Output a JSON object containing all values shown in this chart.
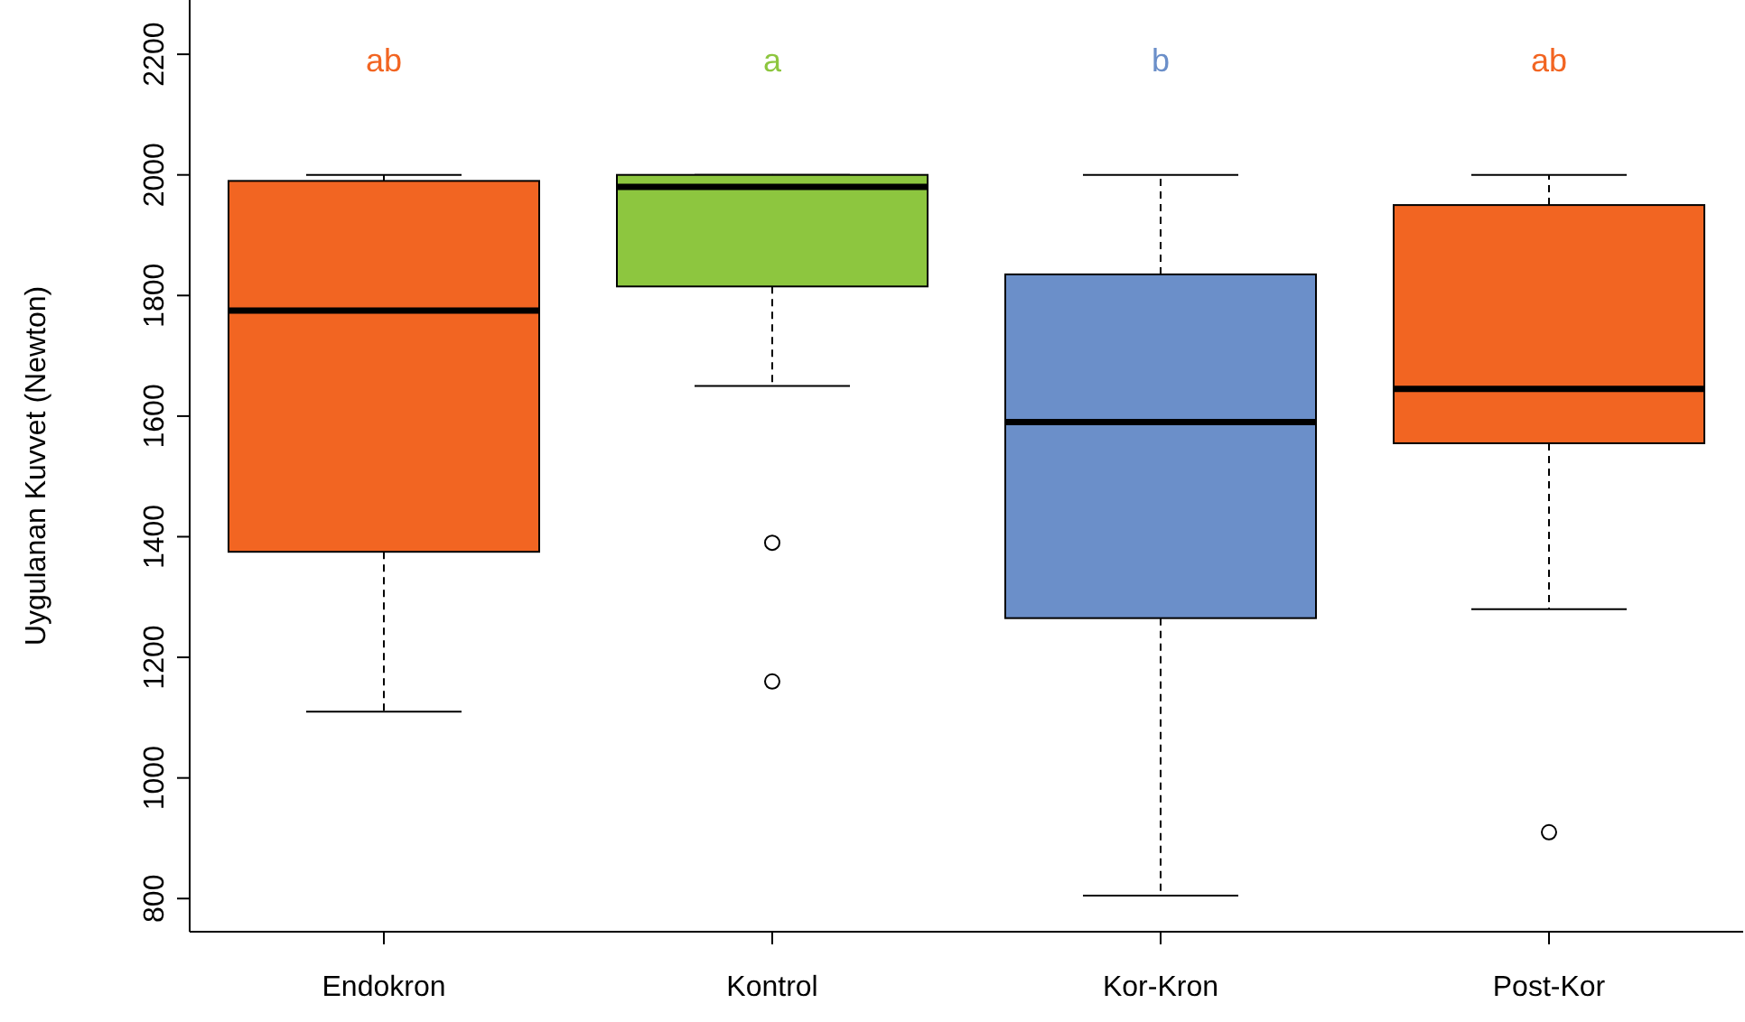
{
  "chart_data": {
    "type": "box",
    "ylabel": "Uygulanan Kuvvet (Newton)",
    "categories": [
      "Endokron",
      "Kontrol",
      "Kor-Kron",
      "Post-Kor"
    ],
    "colors": [
      "#f26522",
      "#8dc63f",
      "#6b8fc9",
      "#f26522"
    ],
    "boxes": [
      {
        "low": 1110,
        "q1": 1375,
        "median": 1775,
        "q3": 1990,
        "high": 2000
      },
      {
        "low": 1650,
        "q1": 1815,
        "median": 1980,
        "q3": 2000,
        "high": 2000,
        "outliers": [
          1390,
          1160
        ]
      },
      {
        "low": 805,
        "q1": 1265,
        "median": 1590,
        "q3": 1835,
        "high": 2000
      },
      {
        "low": 1280,
        "q1": 1555,
        "median": 1645,
        "q3": 1950,
        "high": 2000,
        "outliers": [
          910
        ]
      }
    ],
    "ylim": [
      745,
      2290
    ],
    "yticks": [
      800,
      1000,
      1200,
      1400,
      1600,
      1800,
      2000,
      2200
    ],
    "annotations": [
      "ab",
      "a",
      "b",
      "ab"
    ]
  }
}
